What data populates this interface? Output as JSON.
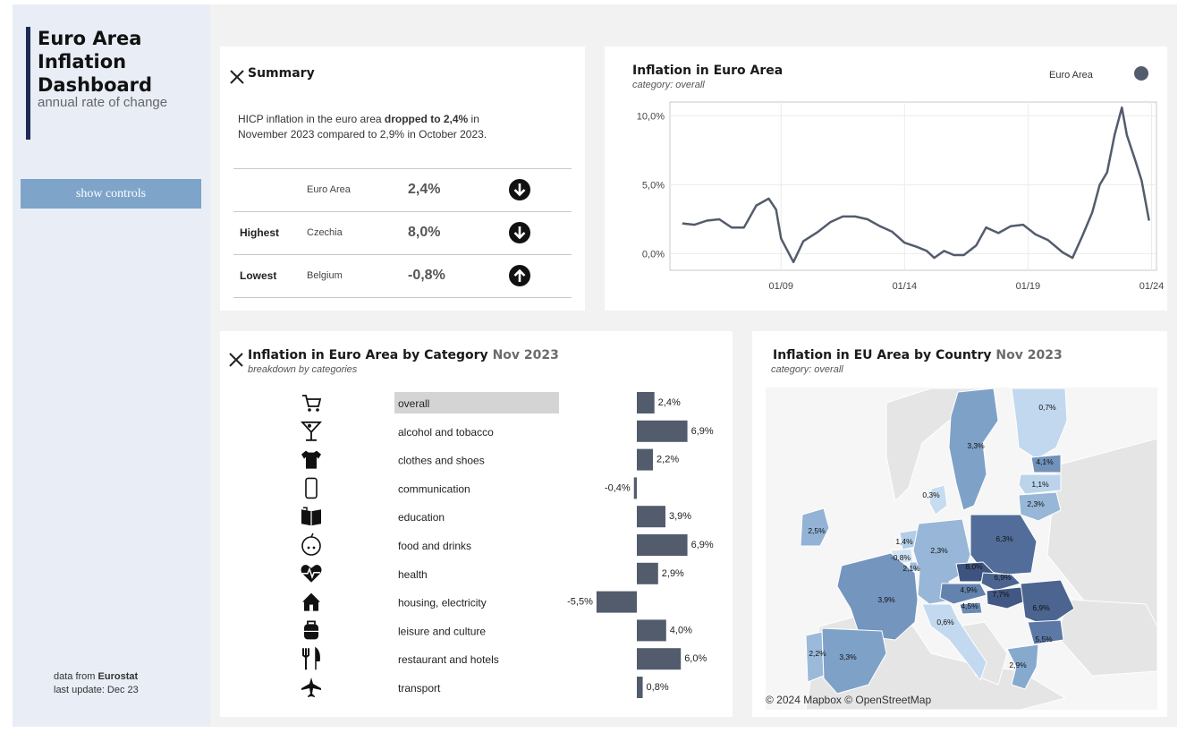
{
  "sidebar": {
    "title_lines": [
      "Euro Area",
      "Inflation",
      "Dashboard"
    ],
    "subtitle": "annual rate of change",
    "controls_button": "show controls",
    "source_prefix": "data from ",
    "source_name": "Eurostat",
    "last_update": "last update: Dec 23"
  },
  "summary": {
    "title": "Summary",
    "text_part1": "HICP inflation in the euro area ",
    "text_bold": "dropped to 2,4%",
    "text_part2": " in November 2023 compared to 2,9% in October 2023.",
    "rows": [
      {
        "label": "",
        "country": "Euro Area",
        "value": "2,4%",
        "direction": "down",
        "icon": "arrow-down-circle-icon"
      },
      {
        "label": "Highest",
        "country": "Czechia",
        "value": "8,0%",
        "direction": "down",
        "icon": "arrow-down-circle-icon"
      },
      {
        "label": "Lowest",
        "country": "Belgium",
        "value": "-0,8%",
        "direction": "up",
        "icon": "arrow-up-circle-icon"
      }
    ]
  },
  "line_panel": {
    "title": "Inflation in Euro Area",
    "subtitle": "category: overall",
    "legend": "Euro Area",
    "legend_color": "#535c6d"
  },
  "category_panel": {
    "title": "Inflation in Euro Area by Category",
    "title_period": "Nov 2023",
    "subtitle": "breakdown by categories",
    "selected_color": "#d4d4d4",
    "bar_color": "#535c6d"
  },
  "map_panel": {
    "title": "Inflation in EU Area by Country",
    "title_period": "Nov 2023",
    "subtitle": "category: overall",
    "credit": "© 2024 Mapbox  © OpenStreetMap",
    "countries": [
      {
        "name": "Finland",
        "value": 0.7,
        "label": "0,7%"
      },
      {
        "name": "Sweden",
        "value": 3.3,
        "label": "3,3%"
      },
      {
        "name": "Estonia",
        "value": 4.1,
        "label": "4,1%"
      },
      {
        "name": "Latvia",
        "value": 1.1,
        "label": "1,1%"
      },
      {
        "name": "Lithuania",
        "value": 2.3,
        "label": "2,3%"
      },
      {
        "name": "Denmark",
        "value": 0.3,
        "label": "0,3%"
      },
      {
        "name": "Ireland",
        "value": 2.5,
        "label": "2,5%"
      },
      {
        "name": "Netherlands",
        "value": 1.4,
        "label": "1,4%"
      },
      {
        "name": "Belgium",
        "value": -0.8,
        "label": "-0,8%"
      },
      {
        "name": "Luxembourg",
        "value": 2.1,
        "label": "2,1%"
      },
      {
        "name": "Germany",
        "value": 2.3,
        "label": "2,3%"
      },
      {
        "name": "Poland",
        "value": 6.3,
        "label": "6,3%"
      },
      {
        "name": "Czechia",
        "value": 8.0,
        "label": "8,0%"
      },
      {
        "name": "Slovakia",
        "value": 6.9,
        "label": "6,9%"
      },
      {
        "name": "Austria",
        "value": 4.9,
        "label": "4,9%"
      },
      {
        "name": "Hungary",
        "value": 7.7,
        "label": "7,7%"
      },
      {
        "name": "Slovenia",
        "value": 4.5,
        "label": "4,5%"
      },
      {
        "name": "Romania",
        "value": 6.9,
        "label": "6,9%"
      },
      {
        "name": "France",
        "value": 3.9,
        "label": "3,9%"
      },
      {
        "name": "Italy",
        "value": 0.6,
        "label": "0,6%"
      },
      {
        "name": "Bulgaria",
        "value": 5.5,
        "label": "5,5%"
      },
      {
        "name": "Portugal",
        "value": 2.2,
        "label": "2,2%"
      },
      {
        "name": "Spain",
        "value": 3.3,
        "label": "3,3%"
      },
      {
        "name": "Greece",
        "value": 2.9,
        "label": "2,9%"
      }
    ]
  },
  "chart_data": [
    {
      "type": "line",
      "title": "Inflation in Euro Area",
      "subtitle": "category: overall",
      "series": [
        {
          "name": "Euro Area",
          "color": "#535c6d",
          "x": [
            2005.0,
            2005.5,
            2006.0,
            2006.5,
            2007.0,
            2007.5,
            2008.0,
            2008.5,
            2008.8,
            2009.0,
            2009.5,
            2009.9,
            2010.5,
            2011.0,
            2011.5,
            2012.0,
            2012.5,
            2013.0,
            2013.5,
            2014.0,
            2014.5,
            2014.9,
            2015.2,
            2015.6,
            2016.0,
            2016.4,
            2016.9,
            2017.3,
            2017.8,
            2018.3,
            2018.8,
            2019.3,
            2019.8,
            2020.4,
            2020.8,
            2021.2,
            2021.6,
            2021.9,
            2022.2,
            2022.5,
            2022.8,
            2023.0,
            2023.3,
            2023.6,
            2023.9
          ],
          "values": [
            2.2,
            2.1,
            2.4,
            2.5,
            1.9,
            1.9,
            3.5,
            4.0,
            3.2,
            1.1,
            -0.6,
            0.9,
            1.6,
            2.3,
            2.7,
            2.7,
            2.5,
            2.0,
            1.6,
            0.8,
            0.5,
            0.2,
            -0.3,
            0.2,
            -0.1,
            -0.1,
            0.6,
            1.9,
            1.5,
            2.0,
            2.1,
            1.4,
            1.0,
            0.1,
            -0.3,
            1.3,
            3.0,
            5.0,
            5.9,
            8.6,
            10.6,
            8.6,
            7.0,
            5.3,
            2.4
          ]
        }
      ],
      "xlim": [
        2004.5,
        2024.2
      ],
      "ylim": [
        -1.2,
        11.0
      ],
      "y_ticks": [
        {
          "value": 0,
          "label": "0,0%"
        },
        {
          "value": 5,
          "label": "5,0%"
        },
        {
          "value": 10,
          "label": "10,0%"
        }
      ],
      "x_ticks": [
        {
          "value": 2009,
          "label": "01/09"
        },
        {
          "value": 2014,
          "label": "01/14"
        },
        {
          "value": 2019,
          "label": "01/19"
        },
        {
          "value": 2024,
          "label": "01/24"
        }
      ],
      "grid": true
    },
    {
      "type": "bar",
      "title": "Inflation in Euro Area by Category Nov 2023",
      "subtitle": "breakdown by categories",
      "categories": [
        "overall",
        "alcohol and tobacco",
        "clothes and shoes",
        "communication",
        "education",
        "food and drinks",
        "health",
        "housing, electricity",
        "leisure and culture",
        "restaurant and hotels",
        "transport"
      ],
      "values": [
        2.4,
        6.9,
        2.2,
        -0.4,
        3.9,
        6.9,
        2.9,
        -5.5,
        4.0,
        6.0,
        0.8
      ],
      "labels": [
        "2,4%",
        "6,9%",
        "2,2%",
        "-0,4%",
        "3,9%",
        "6,9%",
        "2,9%",
        "-5,5%",
        "4,0%",
        "6,0%",
        "0,8%"
      ],
      "icons": [
        "cart-icon",
        "cocktail-icon",
        "shirt-icon",
        "phone-icon",
        "book-icon",
        "apple-icon",
        "heart-pulse-icon",
        "house-icon",
        "backpack-icon",
        "cutlery-icon",
        "airplane-icon"
      ],
      "orientation": "horizontal",
      "selected": "overall"
    }
  ]
}
